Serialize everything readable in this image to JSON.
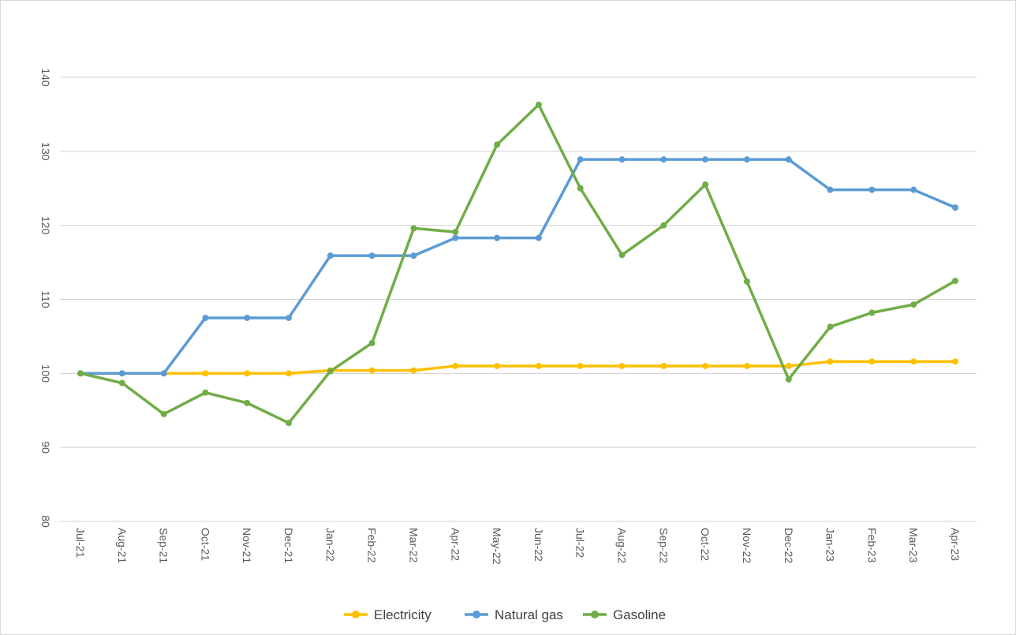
{
  "chart_data": {
    "type": "line",
    "title": "",
    "xlabel": "",
    "ylabel": "",
    "ylim": [
      80,
      140
    ],
    "yticks": [
      80,
      90,
      100,
      110,
      120,
      130,
      140
    ],
    "grid": true,
    "legend_position": "bottom",
    "categories": [
      "Jul-21",
      "Aug-21",
      "Sep-21",
      "Oct-21",
      "Nov-21",
      "Dec-21",
      "Jan-22",
      "Feb-22",
      "Mar-22",
      "Apr-22",
      "May-22",
      "Jun-22",
      "Jul-22",
      "Aug-22",
      "Sep-22",
      "Oct-22",
      "Nov-22",
      "Dec-22",
      "Jan-23",
      "Feb-23",
      "Mar-23",
      "Apr-23"
    ],
    "series": [
      {
        "name": "Electricity",
        "color": "#FFC000",
        "values": [
          100,
          100,
          100,
          100,
          100,
          100,
          100.4,
          100.4,
          100.4,
          101.0,
          101.0,
          101.0,
          101.0,
          101.0,
          101.0,
          101.0,
          101.0,
          101.0,
          101.6,
          101.6,
          101.6,
          101.6
        ]
      },
      {
        "name": "Natural gas",
        "color": "#5B9BD5",
        "values": [
          100,
          100,
          100,
          107.5,
          107.5,
          107.5,
          115.9,
          115.9,
          115.9,
          118.3,
          118.3,
          118.3,
          128.9,
          128.9,
          128.9,
          128.9,
          128.9,
          128.9,
          124.8,
          124.8,
          124.8,
          122.4
        ]
      },
      {
        "name": "Gasoline",
        "color": "#70AD47",
        "values": [
          100,
          98.7,
          94.5,
          97.4,
          96.0,
          93.3,
          100.3,
          104.1,
          119.6,
          119.1,
          130.9,
          136.3,
          125.0,
          116.0,
          120.0,
          125.5,
          112.4,
          99.2,
          106.3,
          108.2,
          109.3,
          112.5
        ]
      }
    ]
  }
}
